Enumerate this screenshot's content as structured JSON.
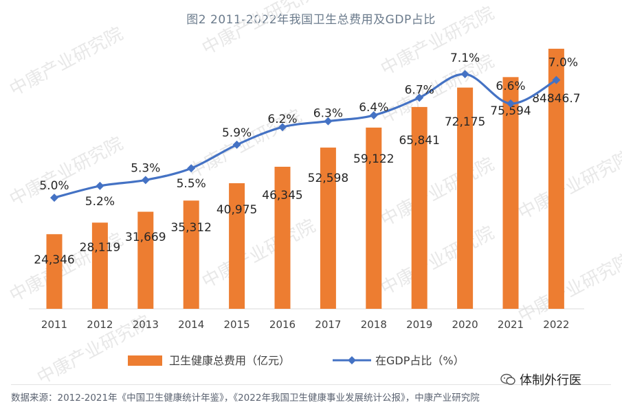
{
  "title": "图2  2011-2022年我国卫生总费用及GDP占比",
  "footer": "数据来源：2012-2021年《中国卫生健康统计年鉴》，《2022年我国卫生健康事业发展统计公报》，中康产业研究院",
  "brand": "体制外行医",
  "watermark": "中康产业研究院",
  "chart_data": {
    "type": "bar",
    "categories": [
      "2011",
      "2012",
      "2013",
      "2014",
      "2015",
      "2016",
      "2017",
      "2018",
      "2019",
      "2020",
      "2021",
      "2022"
    ],
    "series": [
      {
        "name": "卫生健康总费用（亿元）",
        "kind": "bar",
        "color": "#ed7d31",
        "values": [
          24346,
          28119,
          31669,
          35312,
          40975,
          46345,
          52598,
          59122,
          65841,
          72175,
          75594,
          84846.7
        ],
        "labels": [
          "24,346",
          "28,119",
          "31,669",
          "35,312",
          "40,975",
          "46,345",
          "52,598",
          "59,122",
          "65,841",
          "72,175",
          "75,594",
          "84846.7"
        ]
      },
      {
        "name": "在GDP占比（%）",
        "kind": "line",
        "color": "#4472c4",
        "values": [
          5.0,
          5.2,
          5.3,
          5.5,
          5.9,
          6.2,
          6.3,
          6.4,
          6.7,
          7.1,
          6.6,
          7.0
        ],
        "labels": [
          "5.0%",
          "5.2%",
          "5.3%",
          "5.5%",
          "5.9%",
          "6.2%",
          "6.3%",
          "6.4%",
          "6.7%",
          "7.1%",
          "6.6%",
          "7.0%"
        ]
      }
    ],
    "bar_ylim": [
      0,
      90000
    ],
    "line_ylim": [
      3.1,
      7.8
    ],
    "legend_position": "bottom",
    "grid": false
  }
}
